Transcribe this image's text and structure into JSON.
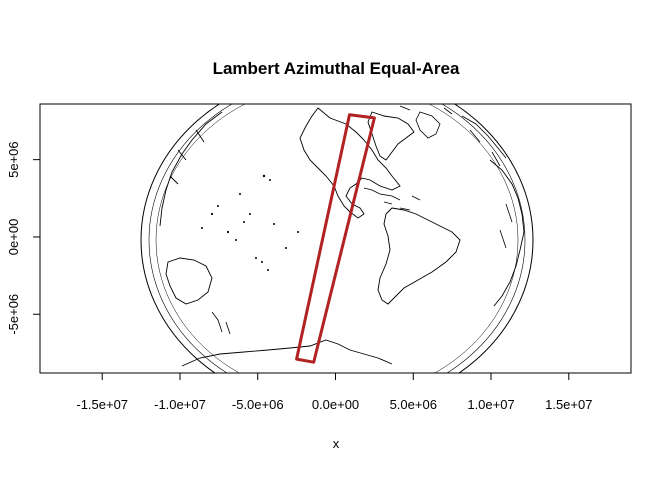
{
  "chart_data": {
    "type": "map",
    "title": "Lambert Azimuthal Equal-Area",
    "xlabel": "x",
    "ylabel": "",
    "xlim": [
      -19000000,
      19000000
    ],
    "ylim": [
      -8800000,
      8600000
    ],
    "x_ticks": [
      {
        "value": -15000000,
        "label": "-1.5e+07"
      },
      {
        "value": -10000000,
        "label": "-1.0e+07"
      },
      {
        "value": -5000000,
        "label": "-5.0e+06"
      },
      {
        "value": 0,
        "label": "0.0e+00"
      },
      {
        "value": 5000000,
        "label": "5.0e+06"
      },
      {
        "value": 10000000,
        "label": "1.0e+07"
      },
      {
        "value": 15000000,
        "label": "1.5e+07"
      }
    ],
    "y_ticks": [
      {
        "value": -5000000,
        "label": "-5e+06"
      },
      {
        "value": 0,
        "label": "0e+00"
      },
      {
        "value": 5000000,
        "label": "5e+06"
      }
    ],
    "grid": false,
    "colors": {
      "coastline": "#000000",
      "highlight_box": "#b22222"
    },
    "highlight_polygon": [
      [
        900000,
        7900000
      ],
      [
        2500000,
        7700000
      ],
      [
        -1400000,
        -8100000
      ],
      [
        -2500000,
        -7900000
      ]
    ]
  }
}
